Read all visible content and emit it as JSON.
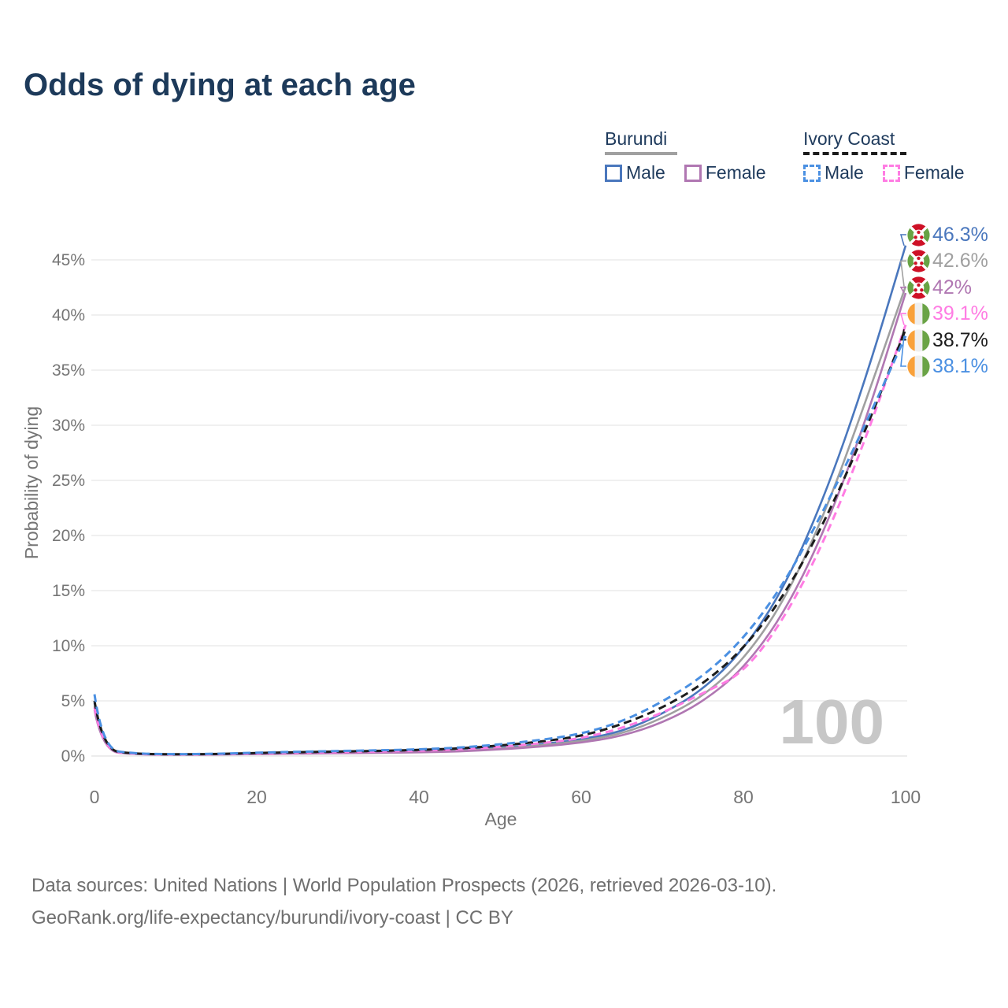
{
  "title": "Odds of dying at each age",
  "watermark_age": "100",
  "legend": {
    "groups": [
      {
        "label": "Burundi",
        "style": "solid",
        "series_ref": 1,
        "items": [
          {
            "label": "Male",
            "series_ref": 0
          },
          {
            "label": "Female",
            "series_ref": 2
          }
        ]
      },
      {
        "label": "Ivory Coast",
        "style": "dashed",
        "series_ref": 4,
        "items": [
          {
            "label": "Male",
            "series_ref": 5
          },
          {
            "label": "Female",
            "series_ref": 3
          }
        ]
      }
    ]
  },
  "footer": {
    "sources": "Data sources: United Nations | World Population Prospects (2026, retrieved 2026-03-10).",
    "link": "GeoRank.org/life-expectancy/burundi/ivory-coast | CC BY"
  },
  "chart_data": {
    "type": "line",
    "title": "Odds of dying at each age",
    "xlabel": "Age",
    "ylabel": "Probability of dying",
    "xlim": [
      0,
      100
    ],
    "ylim": [
      0,
      47
    ],
    "x_ticks": [
      0,
      20,
      40,
      60,
      80,
      100
    ],
    "y_ticks": [
      0,
      5,
      10,
      15,
      20,
      25,
      30,
      35,
      40,
      45
    ],
    "y_tick_suffix": "%",
    "grid": "horizontal",
    "legend_position": "top-right",
    "x": [
      0,
      1,
      5,
      10,
      15,
      20,
      25,
      30,
      35,
      40,
      45,
      50,
      55,
      60,
      65,
      70,
      75,
      80,
      85,
      90,
      95,
      100
    ],
    "series": [
      {
        "name": "Burundi — Male",
        "slug": "burundi-male",
        "color": "#4a77bd",
        "dashed": false,
        "flag": "burundi",
        "end_label": "46.3%",
        "values": [
          4.8,
          0.5,
          0.18,
          0.14,
          0.17,
          0.24,
          0.28,
          0.33,
          0.37,
          0.42,
          0.52,
          0.75,
          1.05,
          1.5,
          2.2,
          3.8,
          6.0,
          9.6,
          15.2,
          23.5,
          34.0,
          46.3
        ]
      },
      {
        "name": "Burundi — Both sexes",
        "slug": "burundi-both",
        "color": "#a0a0a0",
        "dashed": false,
        "flag": "burundi",
        "end_label": "42.6%",
        "values": [
          4.5,
          0.45,
          0.16,
          0.12,
          0.15,
          0.21,
          0.25,
          0.29,
          0.33,
          0.38,
          0.47,
          0.67,
          0.95,
          1.35,
          2.0,
          3.4,
          5.4,
          8.7,
          14.0,
          21.9,
          32.0,
          42.6
        ]
      },
      {
        "name": "Burundi — Female",
        "slug": "burundi-female",
        "color": "#b077b2",
        "dashed": false,
        "flag": "burundi",
        "end_label": "42%",
        "values": [
          4.15,
          0.42,
          0.15,
          0.11,
          0.13,
          0.18,
          0.21,
          0.25,
          0.28,
          0.33,
          0.41,
          0.6,
          0.85,
          1.2,
          1.8,
          3.0,
          4.9,
          7.9,
          12.9,
          20.4,
          30.2,
          42.0
        ]
      },
      {
        "name": "Ivory Coast — Female",
        "slug": "ivory-coast-female",
        "color": "#ff7ce3",
        "dashed": true,
        "flag": "ivory-coast",
        "end_label": "39.1%",
        "values": [
          4.4,
          0.5,
          0.17,
          0.13,
          0.16,
          0.23,
          0.29,
          0.35,
          0.41,
          0.48,
          0.6,
          0.82,
          1.15,
          1.6,
          2.5,
          3.9,
          5.7,
          7.5,
          12.4,
          19.5,
          28.6,
          39.1
        ]
      },
      {
        "name": "Ivory Coast — Both sexes",
        "slug": "ivory-coast-both",
        "color": "#1c1c1c",
        "dashed": true,
        "flag": "ivory-coast",
        "end_label": "38.7%",
        "values": [
          5.0,
          0.55,
          0.19,
          0.15,
          0.18,
          0.27,
          0.34,
          0.4,
          0.47,
          0.55,
          0.68,
          0.95,
          1.3,
          1.8,
          2.85,
          4.35,
          6.5,
          9.7,
          14.5,
          21.2,
          29.4,
          38.7
        ]
      },
      {
        "name": "Ivory Coast — Male",
        "slug": "ivory-coast-male",
        "color": "#4b90e2",
        "dashed": true,
        "flag": "ivory-coast",
        "end_label": "38.1%",
        "values": [
          5.6,
          0.6,
          0.21,
          0.16,
          0.2,
          0.3,
          0.38,
          0.45,
          0.52,
          0.6,
          0.75,
          1.05,
          1.45,
          2.0,
          3.1,
          4.9,
          7.2,
          10.6,
          15.6,
          22.4,
          30.0,
          38.1
        ]
      }
    ]
  }
}
